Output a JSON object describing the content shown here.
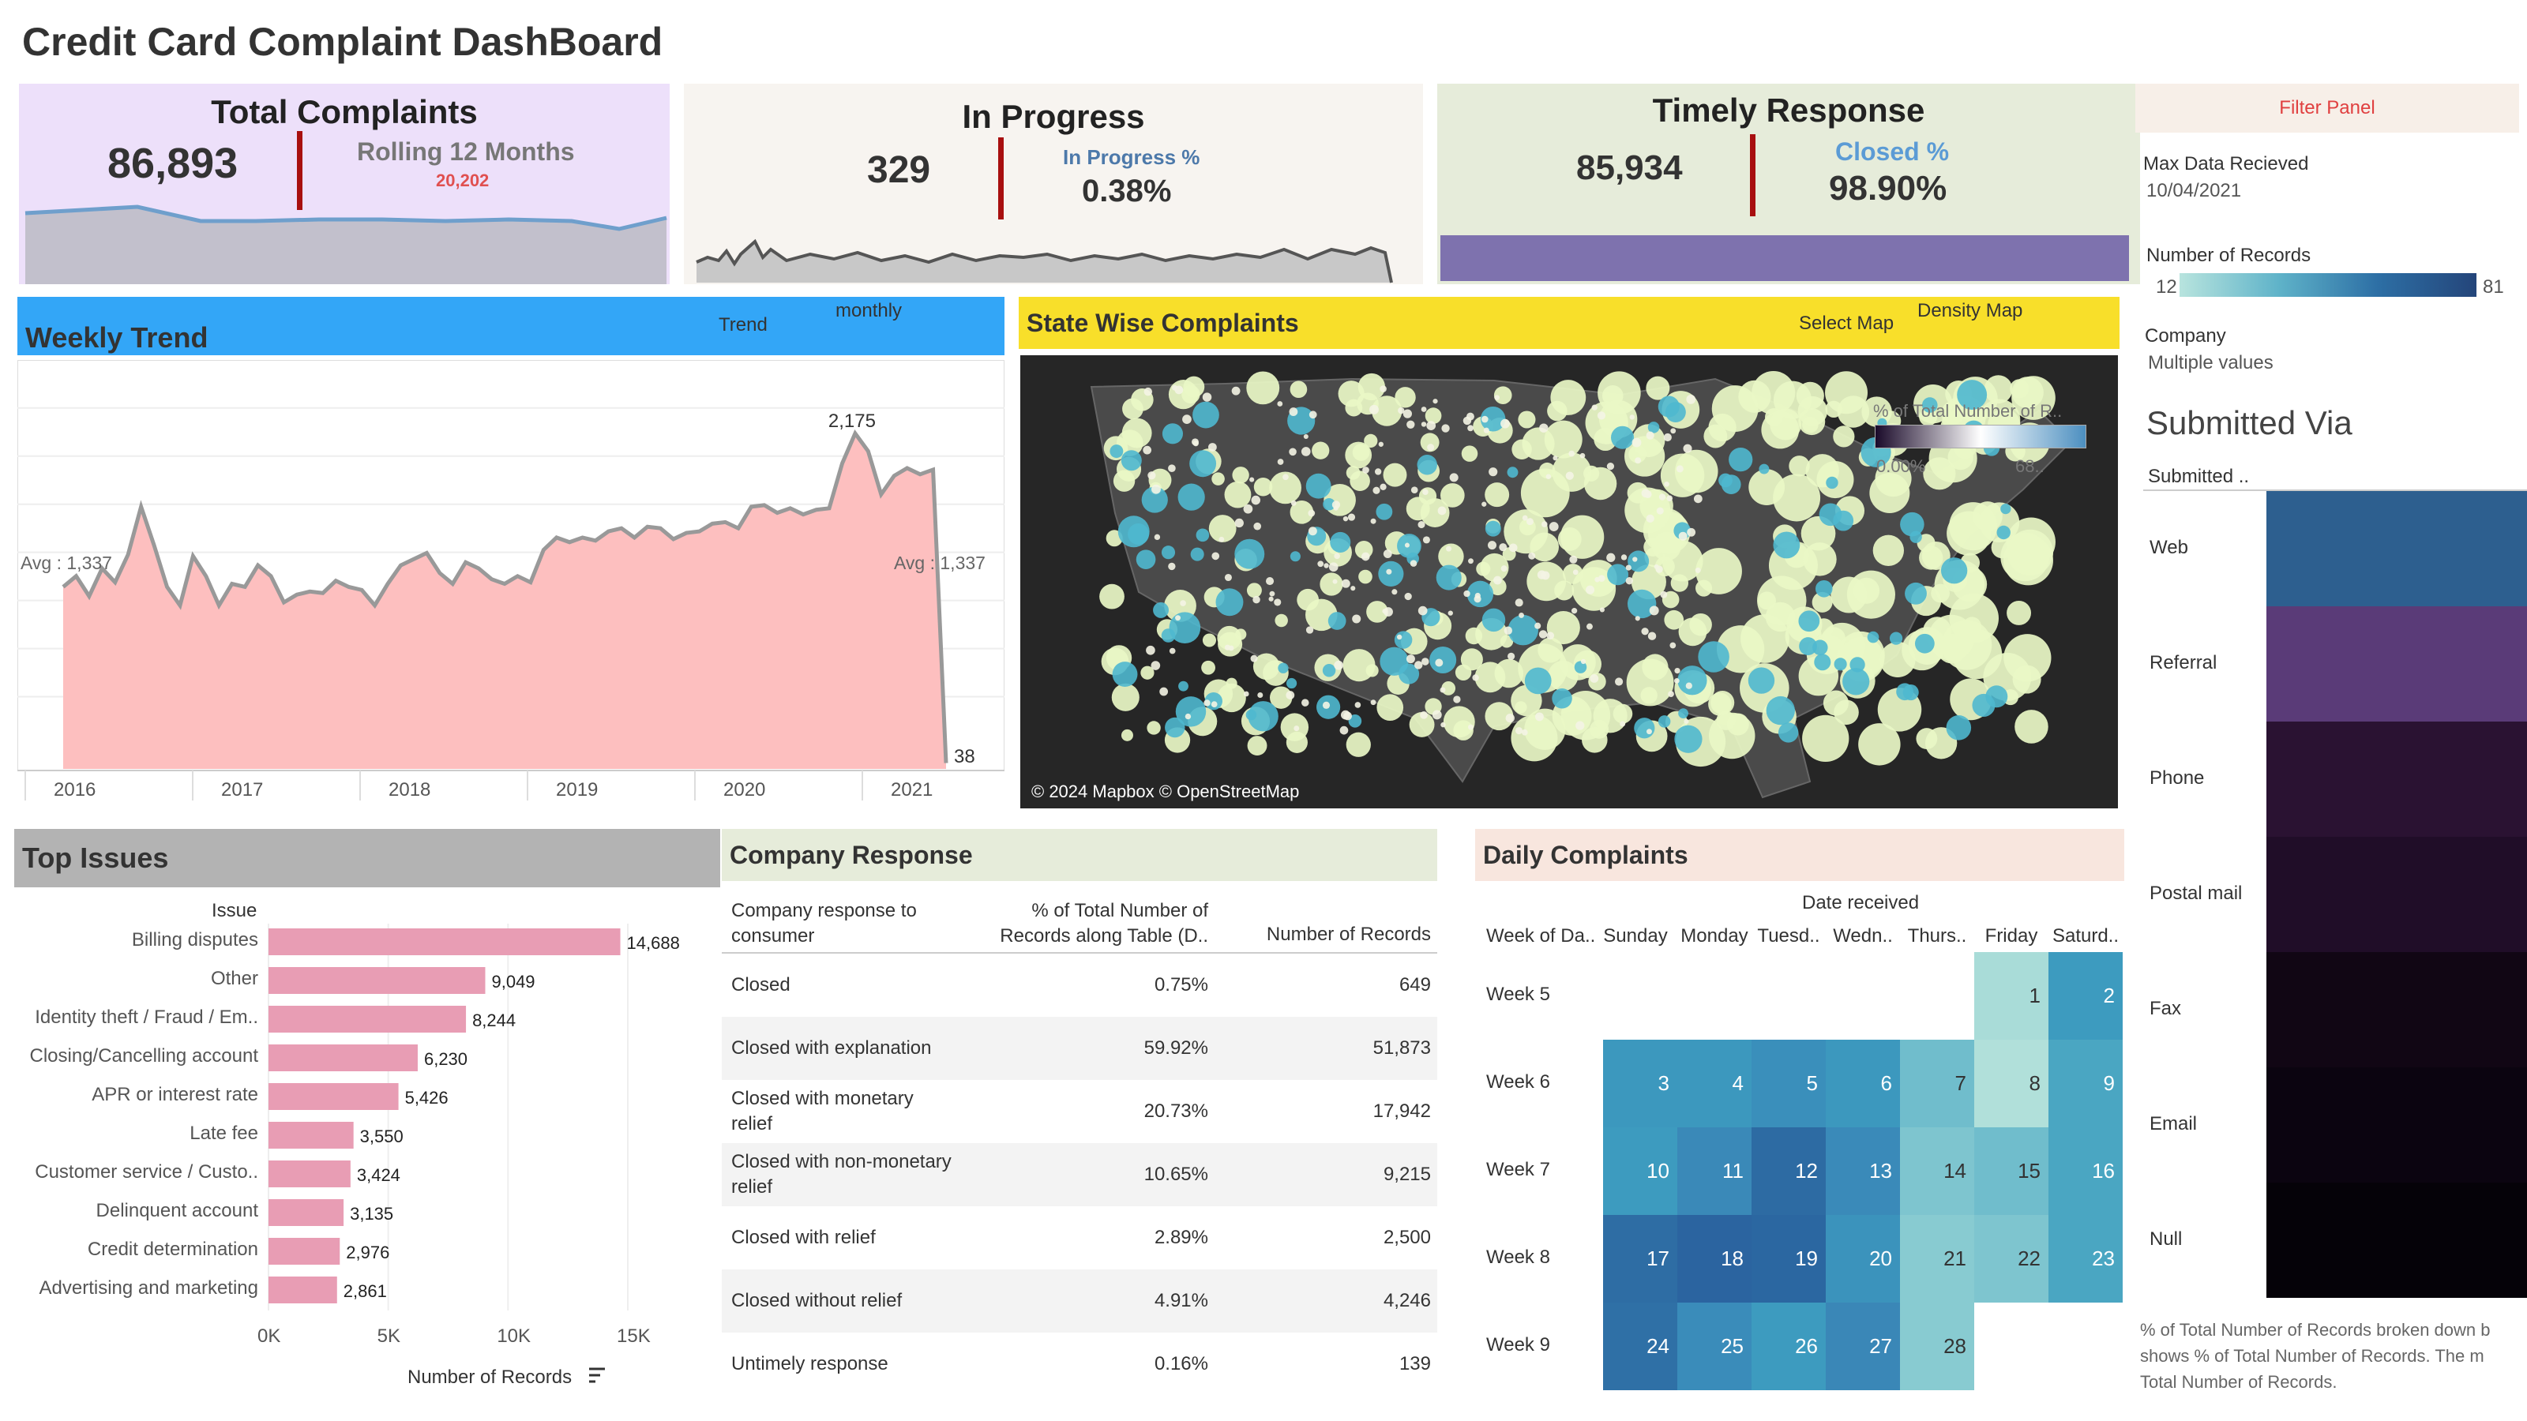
{
  "title": "Credit Card Complaint DashBoard",
  "total": {
    "header": "Total Complaints",
    "value": "86,893",
    "rolling_label": "Rolling 12 Months",
    "rolling_value": "20,202"
  },
  "inprogress": {
    "header": "In Progress",
    "value": "329",
    "pct_label": "In Progress %",
    "pct_value": "0.38%"
  },
  "timely": {
    "header": "Timely Response",
    "value": "85,934",
    "pct_label": "Closed %",
    "pct_value": "98.90%"
  },
  "filter": {
    "title": "Filter Panel",
    "max_date_label": "Max Data Recieved",
    "max_date_value": "10/04/2021",
    "records_label": "Number of Records",
    "records_min": "12",
    "records_max": "81",
    "company_label": "Company",
    "company_value": "Multiple values"
  },
  "weekly": {
    "header": "Weekly Trend",
    "trend_label": "Trend",
    "trend_value": "monthly",
    "avg_left": "Avg : 1,337",
    "avg_right": "Avg : 1,337",
    "peak_label": "2,175",
    "last_label": "38",
    "years": [
      "2016",
      "2017",
      "2018",
      "2019",
      "2020",
      "2021"
    ]
  },
  "state": {
    "header": "State Wise Complaints",
    "select_label": "Select Map",
    "select_value": "Density Map",
    "legend_title": "% of Total Number of R..",
    "legend_min": "0.00%",
    "legend_max": "68..",
    "attribution": "© 2024 Mapbox © OpenStreetMap"
  },
  "submitted": {
    "title": "Submitted Via",
    "col_header": "Submitted ..",
    "channels": [
      "Web",
      "Referral",
      "Phone",
      "Postal mail",
      "Fax",
      "Email",
      "Null"
    ],
    "colors": [
      "#2d5f8f",
      "#5a3b78",
      "#2a1232",
      "#200d28",
      "#110614",
      "#0b0410",
      "#050208"
    ],
    "footnote": [
      "% of Total Number of Records broken down b",
      "shows % of Total Number of Records.  The m",
      "Total Number of Records."
    ]
  },
  "issues": {
    "header": "Top Issues",
    "col_header": "Issue",
    "axis_title": "Number of Records",
    "ticks": [
      "0K",
      "5K",
      "10K",
      "15K"
    ],
    "items": [
      {
        "label": "Billing disputes",
        "value": 14688,
        "value_label": "14,688"
      },
      {
        "label": "Other",
        "value": 9049,
        "value_label": "9,049"
      },
      {
        "label": "Identity theft / Fraud / Em..",
        "value": 8244,
        "value_label": "8,244"
      },
      {
        "label": "Closing/Cancelling account",
        "value": 6230,
        "value_label": "6,230"
      },
      {
        "label": "APR or interest rate",
        "value": 5426,
        "value_label": "5,426"
      },
      {
        "label": "Late fee",
        "value": 3550,
        "value_label": "3,550"
      },
      {
        "label": "Customer service / Custo..",
        "value": 3424,
        "value_label": "3,424"
      },
      {
        "label": "Delinquent account",
        "value": 3135,
        "value_label": "3,135"
      },
      {
        "label": "Credit determination",
        "value": 2976,
        "value_label": "2,976"
      },
      {
        "label": "Advertising and marketing",
        "value": 2861,
        "value_label": "2,861"
      }
    ]
  },
  "company": {
    "header": "Company Response",
    "col1": "Company response to consumer",
    "col2": "% of Total Number of Records along Table (D..",
    "col3": "Number of Records",
    "rows": [
      {
        "name": "Closed",
        "pct": "0.75%",
        "count": "649"
      },
      {
        "name": "Closed with explanation",
        "pct": "59.92%",
        "count": "51,873"
      },
      {
        "name": "Closed with monetary relief",
        "pct": "20.73%",
        "count": "17,942"
      },
      {
        "name": "Closed with non-monetary relief",
        "pct": "10.65%",
        "count": "9,215"
      },
      {
        "name": "Closed with relief",
        "pct": "2.89%",
        "count": "2,500"
      },
      {
        "name": "Closed without relief",
        "pct": "4.91%",
        "count": "4,246"
      },
      {
        "name": "Untimely response",
        "pct": "0.16%",
        "count": "139"
      }
    ]
  },
  "daily": {
    "header": "Daily Complaints",
    "date_header": "Date received",
    "week_header": "Week of Da..",
    "days": [
      "Sunday",
      "Monday",
      "Tuesd..",
      "Wedn..",
      "Thurs..",
      "Friday",
      "Saturd.."
    ],
    "weeks": [
      "Week 5",
      "Week 6",
      "Week 7",
      "Week 8",
      "Week 9"
    ],
    "cells": [
      [
        null,
        null,
        null,
        null,
        null,
        {
          "d": "1",
          "c": "#a9dcd8"
        },
        {
          "d": "2",
          "c": "#3d9bbf"
        }
      ],
      [
        {
          "d": "3",
          "c": "#3c98be"
        },
        {
          "d": "4",
          "c": "#3c98be"
        },
        {
          "d": "5",
          "c": "#3a8fbb"
        },
        {
          "d": "6",
          "c": "#3c98be"
        },
        {
          "d": "7",
          "c": "#70bdcc"
        },
        {
          "d": "8",
          "c": "#b1e0da"
        },
        {
          "d": "9",
          "c": "#4aa6c2"
        }
      ],
      [
        {
          "d": "10",
          "c": "#3d9bbf"
        },
        {
          "d": "11",
          "c": "#3a89b8"
        },
        {
          "d": "12",
          "c": "#2d6ba3"
        },
        {
          "d": "13",
          "c": "#3a8ab9"
        },
        {
          "d": "14",
          "c": "#7ec5cf"
        },
        {
          "d": "15",
          "c": "#70bdcc"
        },
        {
          "d": "16",
          "c": "#4aa6c2"
        }
      ],
      [
        {
          "d": "17",
          "c": "#2e6da4"
        },
        {
          "d": "18",
          "c": "#2b64a0"
        },
        {
          "d": "19",
          "c": "#2b67a1"
        },
        {
          "d": "20",
          "c": "#3b93bc"
        },
        {
          "d": "21",
          "c": "#88cbd1"
        },
        {
          "d": "22",
          "c": "#7ec5cf"
        },
        {
          "d": "23",
          "c": "#4aa6c2"
        }
      ],
      [
        {
          "d": "24",
          "c": "#2f70a6"
        },
        {
          "d": "25",
          "c": "#3a8cba"
        },
        {
          "d": "26",
          "c": "#3d9bbf"
        },
        {
          "d": "27",
          "c": "#3a87b7"
        },
        {
          "d": "28",
          "c": "#88cbd1"
        },
        null,
        null
      ]
    ]
  },
  "colors": {
    "total_bg": "#ede0fa",
    "progress_bg": "#f7f4f0",
    "timely_bg": "#e6ecda",
    "weekly_hdr": "#33a6f7",
    "state_hdr": "#f8df2a",
    "issues_hdr": "#b3b3b3",
    "company_hdr": "#e6ecda",
    "daily_hdr": "#f8e6de",
    "bar": "#e89db4",
    "area": "#fdbfbf"
  },
  "chart_data": [
    {
      "type": "area",
      "title": "Weekly Trend",
      "x_labels": [
        "2016",
        "2017",
        "2018",
        "2019",
        "2020",
        "2021"
      ],
      "y": [
        1180,
        1250,
        1120,
        1300,
        1210,
        1390,
        1700,
        1450,
        1180,
        1060,
        1380,
        1250,
        1060,
        1200,
        1180,
        1320,
        1250,
        1080,
        1130,
        1150,
        1140,
        1220,
        1180,
        1160,
        1060,
        1200,
        1320,
        1360,
        1400,
        1270,
        1200,
        1340,
        1300,
        1230,
        1200,
        1250,
        1210,
        1420,
        1500,
        1470,
        1500,
        1480,
        1540,
        1560,
        1500,
        1570,
        1560,
        1490,
        1530,
        1540,
        1590,
        1600,
        1560,
        1700,
        1710,
        1660,
        1690,
        1650,
        1680,
        1690,
        1980,
        2175,
        2060,
        1780,
        1900,
        1950,
        1910,
        1940,
        38
      ],
      "annotations": {
        "avg": 1337,
        "peak": 2175,
        "last": 38
      }
    },
    {
      "type": "bar",
      "title": "Top Issues",
      "categories": [
        "Billing disputes",
        "Other",
        "Identity theft / Fraud / Em..",
        "Closing/Cancelling account",
        "APR or interest rate",
        "Late fee",
        "Customer service / Custo..",
        "Delinquent account",
        "Credit determination",
        "Advertising and marketing"
      ],
      "values": [
        14688,
        9049,
        8244,
        6230,
        5426,
        3550,
        3424,
        3135,
        2976,
        2861
      ],
      "xlabel": "Number of Records",
      "xlim": [
        0,
        17000
      ]
    }
  ]
}
